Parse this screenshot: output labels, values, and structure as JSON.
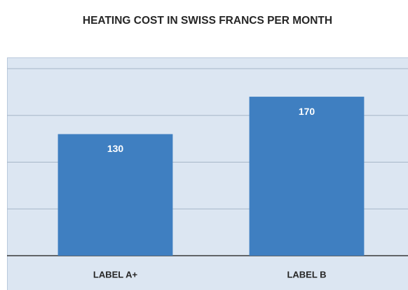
{
  "chart_data": {
    "type": "bar",
    "title": "HEATING COST IN SWISS FRANCS PER MONTH",
    "categories": [
      "LABEL A+",
      "LABEL B"
    ],
    "values": [
      130,
      170
    ],
    "color": "#3f7fc1",
    "ylim": [
      0,
      212
    ],
    "yticks": [
      0,
      50,
      100,
      150,
      200
    ],
    "grid": true
  }
}
